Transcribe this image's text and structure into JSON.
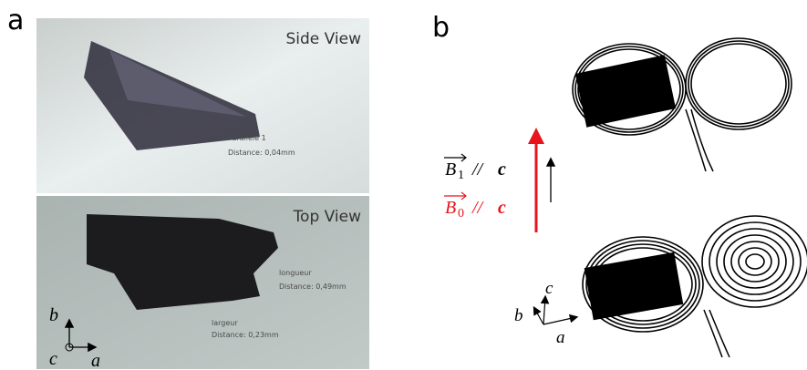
{
  "panels": [
    {
      "label": "a",
      "photos": [
        {
          "title": "Side View",
          "annotations": [
            {
              "name": "Parallèle 1",
              "distance": "Distance: 0,04mm"
            }
          ]
        },
        {
          "title": "Top View",
          "annotations": [
            {
              "name": "longueur",
              "distance": "Distance: 0,49mm"
            },
            {
              "name": "largeur",
              "distance": "Distance: 0,23mm"
            }
          ]
        }
      ],
      "axes": {
        "vertical": "b",
        "origin": "c",
        "horizontal": "a"
      }
    },
    {
      "label": "b",
      "fields": [
        {
          "vector": "B",
          "index": "1",
          "parallel": "//",
          "axis": "c",
          "color": "#000000"
        },
        {
          "vector": "B",
          "index": "0",
          "parallel": "//",
          "axis": "c",
          "color": "#e8141b"
        }
      ],
      "axes": {
        "up": "c",
        "diagonal": "b",
        "horizontal": "a"
      }
    }
  ]
}
